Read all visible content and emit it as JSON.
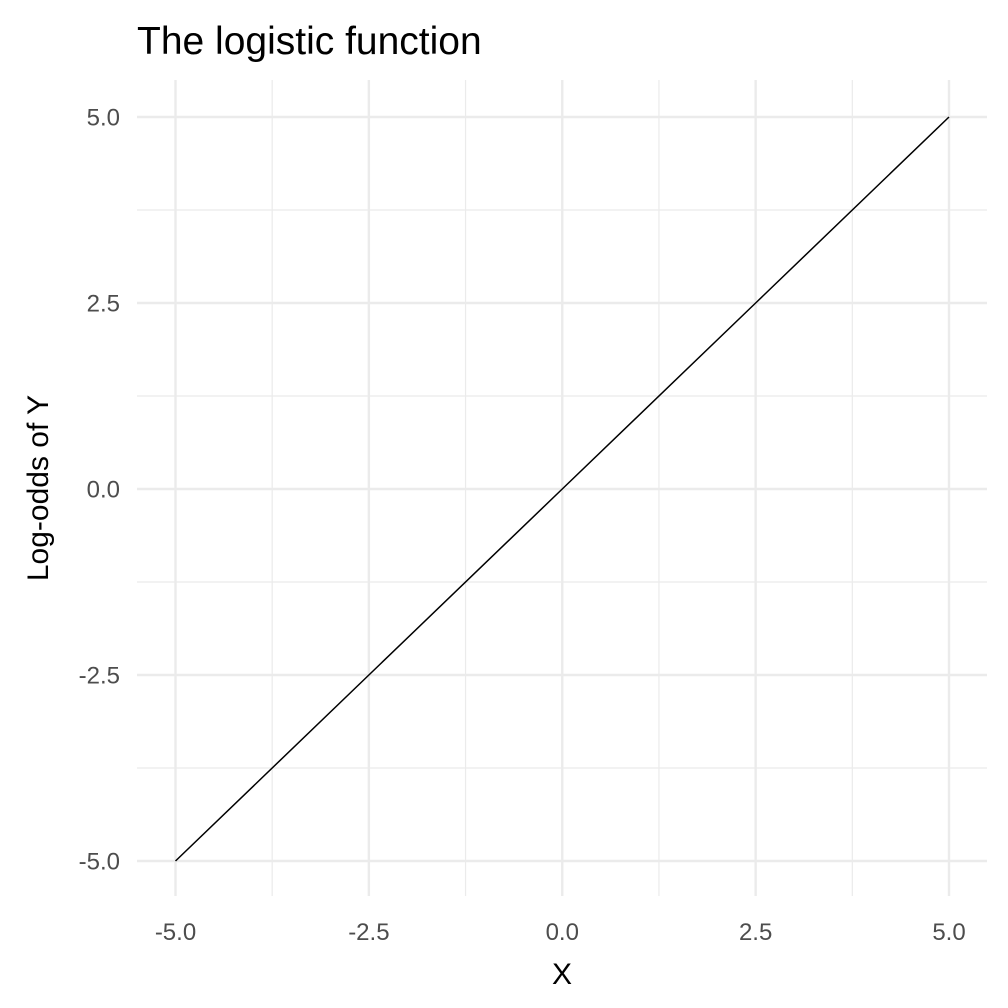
{
  "chart_data": {
    "type": "line",
    "title": "The logistic function",
    "xlabel": "X",
    "ylabel": "Log-odds of Y",
    "xlim": [
      -5,
      5
    ],
    "ylim": [
      -5,
      5
    ],
    "x_ticks": [
      "-5.0",
      "-2.5",
      "0.0",
      "2.5",
      "5.0"
    ],
    "y_ticks": [
      "-5.0",
      "-2.5",
      "0.0",
      "2.5",
      "5.0"
    ],
    "grid": true,
    "legend": "none",
    "series": [
      {
        "color": "#000000",
        "x": [
          -5.0,
          -2.5,
          0.0,
          2.5,
          5.0
        ],
        "y": [
          -5.0,
          -2.5,
          0.0,
          2.5,
          5.0
        ]
      }
    ]
  }
}
